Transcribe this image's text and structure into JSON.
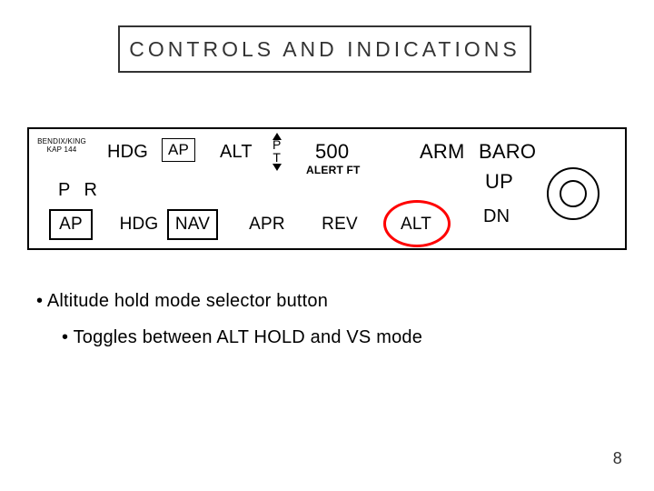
{
  "title": "CONTROLS AND INDICATIONS",
  "panel": {
    "brand_line1": "BENDIX/KING",
    "brand_line2": "KAP 144",
    "annunciators": {
      "hdg": "HDG",
      "ap": "AP",
      "alt": "ALT",
      "pt_p": "P",
      "pt_t": "T",
      "value": "500",
      "alert": "ALERT FT",
      "arm": "ARM",
      "baro": "BARO",
      "up": "UP",
      "dn": "DN"
    },
    "buttons": {
      "pr": "P  R",
      "ap": "AP",
      "hdg": "HDG",
      "nav": "NAV",
      "apr": "APR",
      "rev": "REV",
      "alt": "ALT"
    },
    "highlight_color": "#ff0000"
  },
  "bullets": {
    "b1": "• Altitude hold mode selector button",
    "b2": "• Toggles between ALT HOLD and VS mode"
  },
  "page_number": "8",
  "colors": {
    "border": "#000000",
    "text": "#333333",
    "bg": "#ffffff"
  }
}
